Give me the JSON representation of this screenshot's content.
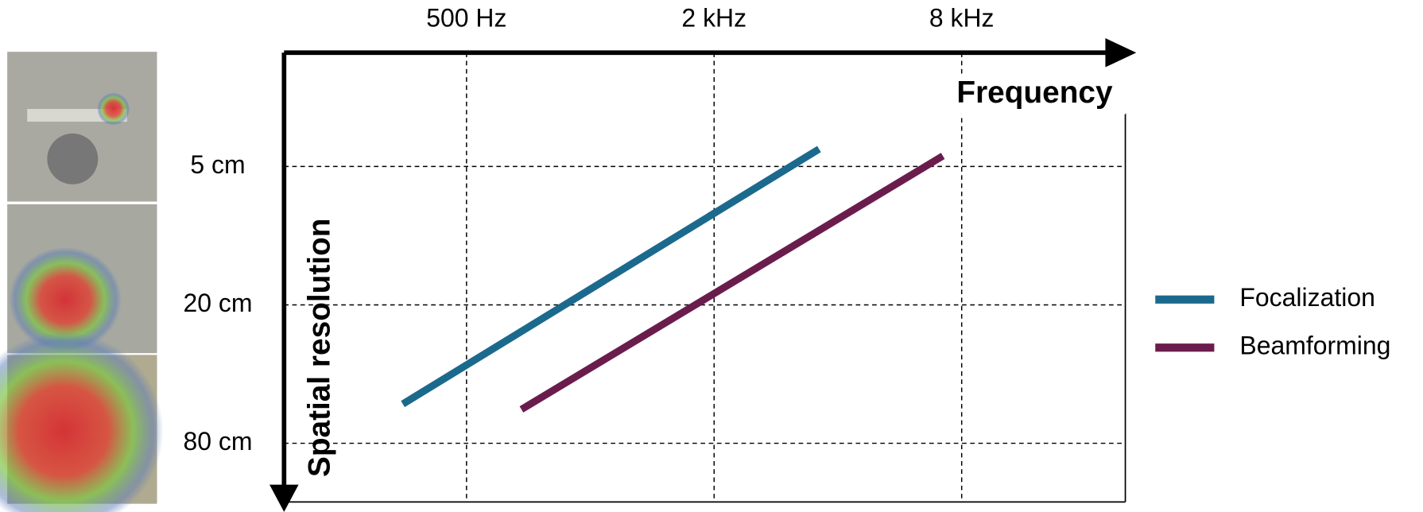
{
  "chart_data": {
    "type": "line",
    "xlabel": "Frequency",
    "ylabel": "Spatial resolution",
    "x_log": true,
    "y_log": true,
    "y_inverted": true,
    "grid": true,
    "legend": "right",
    "xlim": [
      180,
      20000
    ],
    "xticks": [
      {
        "value": 500,
        "label": "500 Hz"
      },
      {
        "value": 2000,
        "label": "2 kHz"
      },
      {
        "value": 8000,
        "label": "8 kHz"
      }
    ],
    "ylim": [
      1.6,
      144
    ],
    "yticks": [
      {
        "value": 5,
        "label": "5 cm"
      },
      {
        "value": 20,
        "label": "20 cm"
      },
      {
        "value": 80,
        "label": "80 cm"
      }
    ],
    "series": [
      {
        "name": "Focalization",
        "color": "#1b6a8d",
        "x": [
          350,
          3600
        ],
        "values": [
          54,
          4.2
        ]
      },
      {
        "name": "Beamforming",
        "color": "#6a1d4c",
        "x": [
          680,
          7200
        ],
        "values": [
          57,
          4.5
        ]
      }
    ]
  }
}
